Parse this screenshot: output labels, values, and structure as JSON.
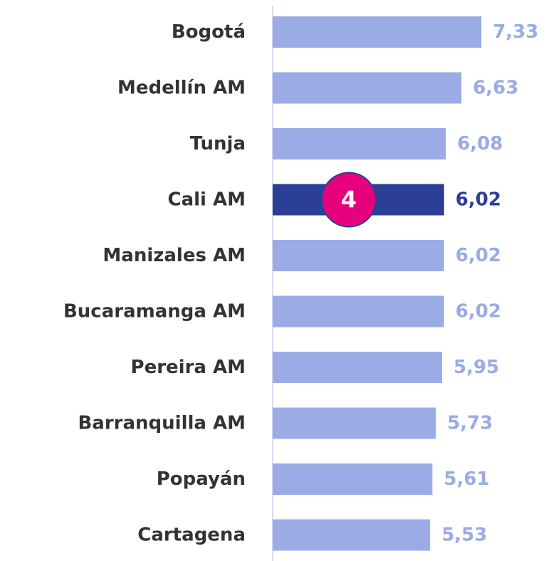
{
  "chart_data": {
    "type": "hbar",
    "categories": [
      "Bogotá",
      "Medellín AM",
      "Tunja",
      "Cali AM",
      "Manizales AM",
      "Bucaramanga AM",
      "Pereira AM",
      "Barranquilla AM",
      "Popayán",
      "Cartagena"
    ],
    "values": [
      7.33,
      6.63,
      6.08,
      6.02,
      6.02,
      6.02,
      5.95,
      5.73,
      5.61,
      5.53
    ],
    "value_labels": [
      "7,33",
      "6,63",
      "6,08",
      "6,02",
      "6,02",
      "6,02",
      "5,95",
      "5,73",
      "5,61",
      "5,53"
    ],
    "colors": [
      "#9aabe6",
      "#9aabe6",
      "#9aabe6",
      "#2b3f96",
      "#9aabe6",
      "#9aabe6",
      "#9aabe6",
      "#9aabe6",
      "#9aabe6",
      "#9aabe6"
    ],
    "xlim": [
      0,
      9.5
    ],
    "annotations": [
      {
        "text": "4",
        "category": "Cali AM",
        "color": "#e6007e"
      }
    ]
  }
}
